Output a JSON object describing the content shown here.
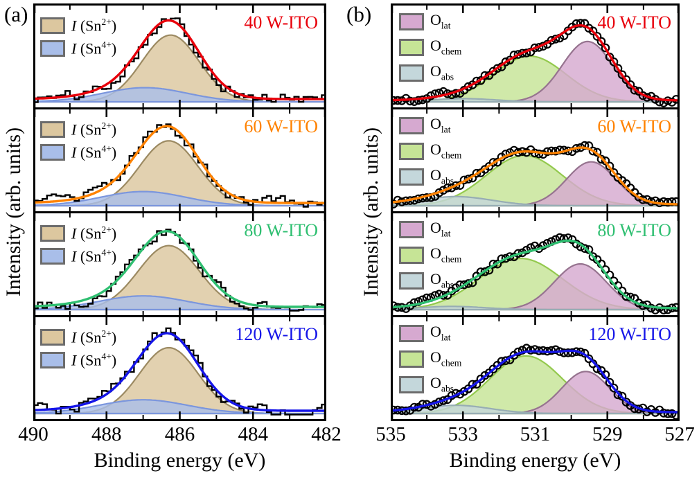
{
  "figure": {
    "background": "#ffffff",
    "panel_a_label": "(a)",
    "panel_b_label": "(b)"
  },
  "component_styles": {
    "sn2": {
      "fill": "#dcc79f",
      "edge": "#9c8a62"
    },
    "sn4": {
      "fill": "#a9bee9",
      "edge": "#7b96dd"
    },
    "olat": {
      "fill": "#d6a9d0",
      "edge": "#96738f"
    },
    "ochem": {
      "fill": "#c6e496",
      "edge": "#94c94e"
    },
    "oabs": {
      "fill": "#c4d7db",
      "edge": "#97adb4"
    }
  },
  "chart_data": {
    "type": "line",
    "description_of_marks": "step-histogram or open-circle measured data, gaussian component fills, colored total-fit line",
    "panels": [
      {
        "id": "a",
        "panel_label": "(a)",
        "xlabel": "Binding energy (eV)",
        "ylabel": "Intensity (arb. units)",
        "x_range": [
          490,
          482
        ],
        "x_major_ticks": [
          490,
          488,
          486,
          484,
          482
        ],
        "x_tick_labels": [
          "490",
          "488",
          "486",
          "484",
          "482"
        ],
        "x_minor_ticks": [
          489,
          487,
          485,
          483
        ],
        "y_ticks": "none (arbitrary units)",
        "data_style": "histogram",
        "legend": [
          {
            "style": "sn2",
            "text": "I (Sn2+)",
            "label": {
              "symbol": "I",
              "pre": " (Sn",
              "sup": "2+",
              "post": ")"
            }
          },
          {
            "style": "sn4",
            "text": "I (Sn4+)",
            "label": {
              "symbol": "I",
              "pre": " (Sn",
              "sup": "4+",
              "post": ")"
            }
          }
        ],
        "subplots": [
          {
            "sample": "40 W-ITO",
            "line_color": "#e8000b",
            "seed": 101,
            "baseline": 0.045,
            "components": [
              {
                "style": "sn2",
                "name": "I (Sn2+)",
                "center": 486.25,
                "sigma": 0.78,
                "amplitude": 0.73
              },
              {
                "style": "sn4",
                "name": "I (Sn4+)",
                "center": 486.95,
                "sigma": 1.15,
                "amplitude": 0.155
              }
            ]
          },
          {
            "sample": "60 W-ITO",
            "line_color": "#ff8200",
            "seed": 102,
            "baseline": 0.045,
            "components": [
              {
                "style": "sn2",
                "name": "I (Sn2+)",
                "center": 486.3,
                "sigma": 0.8,
                "amplitude": 0.71
              },
              {
                "style": "sn4",
                "name": "I (Sn4+)",
                "center": 487.0,
                "sigma": 1.15,
                "amplitude": 0.155
              }
            ]
          },
          {
            "sample": "80 W-ITO",
            "line_color": "#2fbf71",
            "seed": 103,
            "baseline": 0.045,
            "components": [
              {
                "style": "sn2",
                "name": "I (Sn2+)",
                "center": 486.3,
                "sigma": 0.83,
                "amplitude": 0.7
              },
              {
                "style": "sn4",
                "name": "I (Sn4+)",
                "center": 487.0,
                "sigma": 1.2,
                "amplitude": 0.15
              }
            ]
          },
          {
            "sample": "120 W-ITO",
            "line_color": "#1515e8",
            "seed": 104,
            "baseline": 0.045,
            "components": [
              {
                "style": "sn2",
                "name": "I (Sn2+)",
                "center": 486.3,
                "sigma": 0.8,
                "amplitude": 0.72
              },
              {
                "style": "sn4",
                "name": "I (Sn4+)",
                "center": 487.0,
                "sigma": 1.2,
                "amplitude": 0.15
              }
            ]
          }
        ]
      },
      {
        "id": "b",
        "panel_label": "(b)",
        "xlabel": "Binding energy (eV)",
        "ylabel": "Intensity (arb. units)",
        "x_range": [
          535,
          527
        ],
        "x_major_ticks": [
          535,
          533,
          531,
          529,
          527
        ],
        "x_tick_labels": [
          "535",
          "533",
          "531",
          "529",
          "527"
        ],
        "x_minor_ticks": [
          534,
          532,
          530,
          528
        ],
        "y_ticks": "none (arbitrary units)",
        "data_style": "circles",
        "legend": [
          {
            "style": "olat",
            "text": "O_lat",
            "label": {
              "pre": "O",
              "sub": "lat"
            }
          },
          {
            "style": "ochem",
            "text": "O_chem",
            "label": {
              "pre": "O",
              "sub": "chem"
            }
          },
          {
            "style": "oabs",
            "text": "O_abs",
            "label": {
              "pre": "O",
              "sub": "abs"
            }
          }
        ],
        "subplots": [
          {
            "sample": "40 W-ITO",
            "line_color": "#e8000b",
            "seed": 201,
            "baseline": 0.03,
            "components": [
              {
                "style": "ochem",
                "name": "O_chem",
                "center": 531.15,
                "sigma": 1.0,
                "amplitude": 0.5
              },
              {
                "style": "olat",
                "name": "O_lat",
                "center": 529.55,
                "sigma": 0.7,
                "amplitude": 0.66
              },
              {
                "style": "oabs",
                "name": "O_abs",
                "center": 533.0,
                "sigma": 0.9,
                "amplitude": 0.035
              }
            ]
          },
          {
            "sample": "60 W-ITO",
            "line_color": "#ff8200",
            "seed": 202,
            "baseline": 0.03,
            "components": [
              {
                "style": "ochem",
                "name": "O_chem",
                "center": 531.3,
                "sigma": 1.05,
                "amplitude": 0.55
              },
              {
                "style": "olat",
                "name": "O_lat",
                "center": 529.45,
                "sigma": 0.68,
                "amplitude": 0.48
              },
              {
                "style": "oabs",
                "name": "O_abs",
                "center": 533.2,
                "sigma": 1.0,
                "amplitude": 0.1
              }
            ]
          },
          {
            "sample": "80 W-ITO",
            "line_color": "#2fbf71",
            "seed": 203,
            "baseline": 0.03,
            "components": [
              {
                "style": "ochem",
                "name": "O_chem",
                "center": 531.4,
                "sigma": 1.15,
                "amplitude": 0.56
              },
              {
                "style": "olat",
                "name": "O_lat",
                "center": 529.75,
                "sigma": 0.72,
                "amplitude": 0.5
              },
              {
                "style": "oabs",
                "name": "O_abs",
                "center": 533.3,
                "sigma": 0.9,
                "amplitude": 0.035
              }
            ]
          },
          {
            "sample": "120 W-ITO",
            "line_color": "#1515e8",
            "seed": 204,
            "baseline": 0.03,
            "components": [
              {
                "style": "ochem",
                "name": "O_chem",
                "center": 531.25,
                "sigma": 1.0,
                "amplitude": 0.63
              },
              {
                "style": "olat",
                "name": "O_lat",
                "center": 529.6,
                "sigma": 0.66,
                "amplitude": 0.46
              },
              {
                "style": "oabs",
                "name": "O_abs",
                "center": 533.2,
                "sigma": 0.95,
                "amplitude": 0.09
              }
            ]
          }
        ]
      }
    ]
  }
}
